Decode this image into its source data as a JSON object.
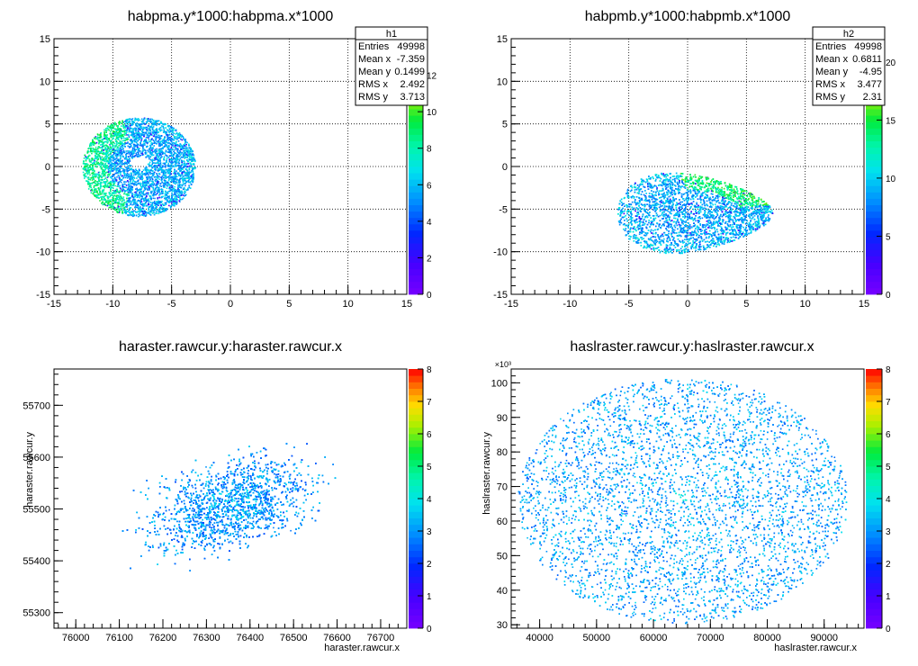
{
  "chart_data": [
    {
      "type": "heatmap",
      "title": "habpma.y*1000:habpma.x*1000",
      "xlim": [
        -15,
        15
      ],
      "ylim": [
        -15,
        15
      ],
      "xticks": [
        -15,
        -10,
        -5,
        0,
        5,
        10,
        15
      ],
      "yticks": [
        -15,
        -10,
        -5,
        0,
        5,
        10,
        15
      ],
      "grid": true,
      "colorbar": {
        "ticks": [
          0,
          2,
          4,
          6,
          8,
          10,
          12
        ],
        "max": 14
      },
      "stats": {
        "name": "h1",
        "rows": [
          [
            "Entries",
            "49998"
          ],
          [
            "Mean x",
            "-7.359"
          ],
          [
            "Mean y",
            "0.1499"
          ],
          [
            "RMS x",
            "2.492"
          ],
          [
            "RMS y",
            "3.713"
          ]
        ]
      },
      "distribution": {
        "shape": "disk",
        "center": [
          -7.8,
          0
        ],
        "radius": [
          4.8,
          5.8
        ],
        "hole": [
          -7.8,
          0.5
        ]
      }
    },
    {
      "type": "heatmap",
      "title": "habpmb.y*1000:habpmb.x*1000",
      "xlim": [
        -15,
        15
      ],
      "ylim": [
        -15,
        15
      ],
      "xticks": [
        -15,
        -10,
        -5,
        0,
        5,
        10,
        15
      ],
      "yticks": [
        -15,
        -10,
        -5,
        0,
        5,
        10,
        15
      ],
      "grid": true,
      "colorbar": {
        "ticks": [
          0,
          5,
          10,
          15,
          20
        ],
        "max": 22
      },
      "stats": {
        "name": "h2",
        "rows": [
          [
            "Entries",
            "49998"
          ],
          [
            "Mean x",
            "0.6811"
          ],
          [
            "Mean y",
            "-4.95"
          ],
          [
            "RMS x",
            "3.477"
          ],
          [
            "RMS y",
            "2.31"
          ]
        ]
      },
      "distribution": {
        "shape": "ellipse",
        "center": [
          0.6,
          -4.6
        ],
        "radius": [
          6.6,
          4.5
        ]
      }
    },
    {
      "type": "heatmap",
      "title": "haraster.rawcur.y:haraster.rawcur.x",
      "xlabel": "haraster.rawcur.x",
      "ylabel": "haraster.rawcur.y",
      "xlim": [
        75950,
        76760
      ],
      "ylim": [
        55270,
        55770
      ],
      "xticks": [
        76000,
        76100,
        76200,
        76300,
        76400,
        76500,
        76600,
        76700
      ],
      "yticks": [
        55300,
        55400,
        55500,
        55600,
        55700
      ],
      "grid": false,
      "colorbar": {
        "ticks": [
          0,
          1,
          2,
          3,
          4,
          5,
          6,
          7,
          8
        ],
        "max": 8
      },
      "distribution": {
        "shape": "tilted-blob",
        "center": [
          76360,
          55510
        ],
        "spread": [
          200,
          90
        ]
      }
    },
    {
      "type": "heatmap",
      "title": "haslraster.rawcur.y:haslraster.rawcur.x",
      "xlabel": "haslraster.rawcur.x",
      "ylabel": "haslraster.rawcur.y",
      "multiplier": "×10³",
      "xlim": [
        35000,
        97000
      ],
      "ylim": [
        29000,
        104000
      ],
      "xticks": [
        40000,
        50000,
        60000,
        70000,
        80000,
        90000
      ],
      "yticks": [
        30,
        40,
        50,
        60,
        70,
        80,
        90,
        100
      ],
      "ytick_scale": 1000,
      "grid": false,
      "colorbar": {
        "ticks": [
          0,
          1,
          2,
          3,
          4,
          5,
          6,
          7,
          8
        ],
        "max": 8
      },
      "distribution": {
        "shape": "uniform-ellipse",
        "center": [
          65000,
          66000
        ],
        "radius": [
          29000,
          35500
        ]
      }
    }
  ]
}
